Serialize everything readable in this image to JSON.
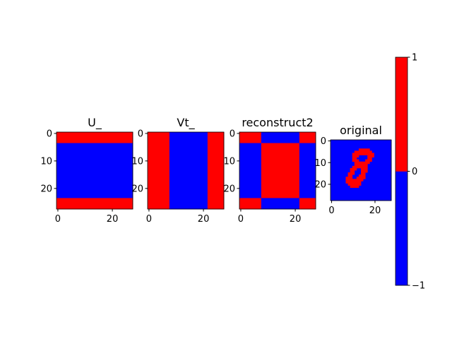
{
  "chart_data": [
    {
      "type": "heatmap",
      "title": "U_",
      "xlim": [
        -0.5,
        27.5
      ],
      "ylim": [
        27.5,
        -0.5
      ],
      "xticks": [
        0,
        20
      ],
      "yticks": [
        0,
        10,
        20
      ],
      "blocks": [
        {
          "rows": [
            0,
            3
          ],
          "cols": [
            0,
            27
          ],
          "value": 1
        },
        {
          "rows": [
            4,
            23
          ],
          "cols": [
            0,
            27
          ],
          "value": -1
        },
        {
          "rows": [
            24,
            27
          ],
          "cols": [
            0,
            27
          ],
          "value": 1
        }
      ]
    },
    {
      "type": "heatmap",
      "title": "Vt_",
      "xlim": [
        -0.5,
        27.5
      ],
      "ylim": [
        27.5,
        -0.5
      ],
      "xticks": [
        0,
        20
      ],
      "yticks": [
        0,
        10,
        20
      ],
      "blocks": [
        {
          "rows": [
            0,
            27
          ],
          "cols": [
            0,
            7
          ],
          "value": 1
        },
        {
          "rows": [
            0,
            27
          ],
          "cols": [
            8,
            21
          ],
          "value": -1
        },
        {
          "rows": [
            0,
            27
          ],
          "cols": [
            22,
            27
          ],
          "value": 1
        }
      ]
    },
    {
      "type": "heatmap",
      "title": "reconstruct2",
      "xlim": [
        -0.5,
        27.5
      ],
      "ylim": [
        27.5,
        -0.5
      ],
      "xticks": [
        0,
        20
      ],
      "yticks": [
        0,
        10,
        20
      ],
      "blocks": [
        {
          "rows": [
            0,
            3
          ],
          "cols": [
            0,
            7
          ],
          "value": 1
        },
        {
          "rows": [
            0,
            3
          ],
          "cols": [
            8,
            21
          ],
          "value": -1
        },
        {
          "rows": [
            0,
            3
          ],
          "cols": [
            22,
            27
          ],
          "value": 1
        },
        {
          "rows": [
            4,
            23
          ],
          "cols": [
            0,
            7
          ],
          "value": -1
        },
        {
          "rows": [
            4,
            23
          ],
          "cols": [
            8,
            21
          ],
          "value": 1
        },
        {
          "rows": [
            4,
            23
          ],
          "cols": [
            22,
            27
          ],
          "value": -1
        },
        {
          "rows": [
            24,
            27
          ],
          "cols": [
            0,
            7
          ],
          "value": 1
        },
        {
          "rows": [
            24,
            27
          ],
          "cols": [
            8,
            21
          ],
          "value": -1
        },
        {
          "rows": [
            24,
            27
          ],
          "cols": [
            22,
            27
          ],
          "value": 1
        }
      ]
    },
    {
      "type": "heatmap",
      "title": "original",
      "xlim": [
        -0.5,
        27.5
      ],
      "ylim": [
        27.5,
        -0.5
      ],
      "xticks": [
        0,
        20
      ],
      "yticks": [
        0,
        10,
        20
      ],
      "blocks": [
        {
          "rows": [
            0,
            27
          ],
          "cols": [
            0,
            27
          ],
          "value": -1
        },
        {
          "rows": [
            4,
            4
          ],
          "cols": [
            13,
            17
          ],
          "value": 1
        },
        {
          "rows": [
            5,
            5
          ],
          "cols": [
            11,
            18
          ],
          "value": 1
        },
        {
          "rows": [
            6,
            6
          ],
          "cols": [
            10,
            19
          ],
          "value": 1
        },
        {
          "rows": [
            7,
            7
          ],
          "cols": [
            10,
            12
          ],
          "value": 1
        },
        {
          "rows": [
            7,
            7
          ],
          "cols": [
            17,
            19
          ],
          "value": 1
        },
        {
          "rows": [
            8,
            8
          ],
          "cols": [
            10,
            11
          ],
          "value": 1
        },
        {
          "rows": [
            8,
            8
          ],
          "cols": [
            17,
            18
          ],
          "value": 1
        },
        {
          "rows": [
            9,
            9
          ],
          "cols": [
            10,
            12
          ],
          "value": 1
        },
        {
          "rows": [
            9,
            9
          ],
          "cols": [
            16,
            18
          ],
          "value": 1
        },
        {
          "rows": [
            10,
            10
          ],
          "cols": [
            11,
            17
          ],
          "value": 1
        },
        {
          "rows": [
            11,
            11
          ],
          "cols": [
            11,
            16
          ],
          "value": 1
        },
        {
          "rows": [
            12,
            12
          ],
          "cols": [
            10,
            16
          ],
          "value": 1
        },
        {
          "rows": [
            13,
            13
          ],
          "cols": [
            9,
            11
          ],
          "value": 1
        },
        {
          "rows": [
            13,
            13
          ],
          "cols": [
            14,
            16
          ],
          "value": 1
        },
        {
          "rows": [
            14,
            14
          ],
          "cols": [
            9,
            10
          ],
          "value": 1
        },
        {
          "rows": [
            14,
            14
          ],
          "cols": [
            14,
            16
          ],
          "value": 1
        },
        {
          "rows": [
            15,
            15
          ],
          "cols": [
            8,
            10
          ],
          "value": 1
        },
        {
          "rows": [
            15,
            15
          ],
          "cols": [
            14,
            15
          ],
          "value": 1
        },
        {
          "rows": [
            16,
            16
          ],
          "cols": [
            8,
            9
          ],
          "value": 1
        },
        {
          "rows": [
            16,
            16
          ],
          "cols": [
            13,
            15
          ],
          "value": 1
        },
        {
          "rows": [
            17,
            17
          ],
          "cols": [
            7,
            9
          ],
          "value": 1
        },
        {
          "rows": [
            17,
            17
          ],
          "cols": [
            12,
            15
          ],
          "value": 1
        },
        {
          "rows": [
            18,
            18
          ],
          "cols": [
            7,
            14
          ],
          "value": 1
        },
        {
          "rows": [
            19,
            19
          ],
          "cols": [
            7,
            13
          ],
          "value": 1
        },
        {
          "rows": [
            20,
            20
          ],
          "cols": [
            8,
            13
          ],
          "value": 1
        },
        {
          "rows": [
            21,
            21
          ],
          "cols": [
            9,
            12
          ],
          "value": 1
        }
      ]
    },
    {
      "type": "colorbar",
      "ylim": [
        -1,
        1
      ],
      "yticks": [
        {
          "value": -1,
          "label": "−1"
        },
        0,
        1
      ],
      "colors": [
        "#0000ff",
        "#ff0000"
      ]
    }
  ]
}
